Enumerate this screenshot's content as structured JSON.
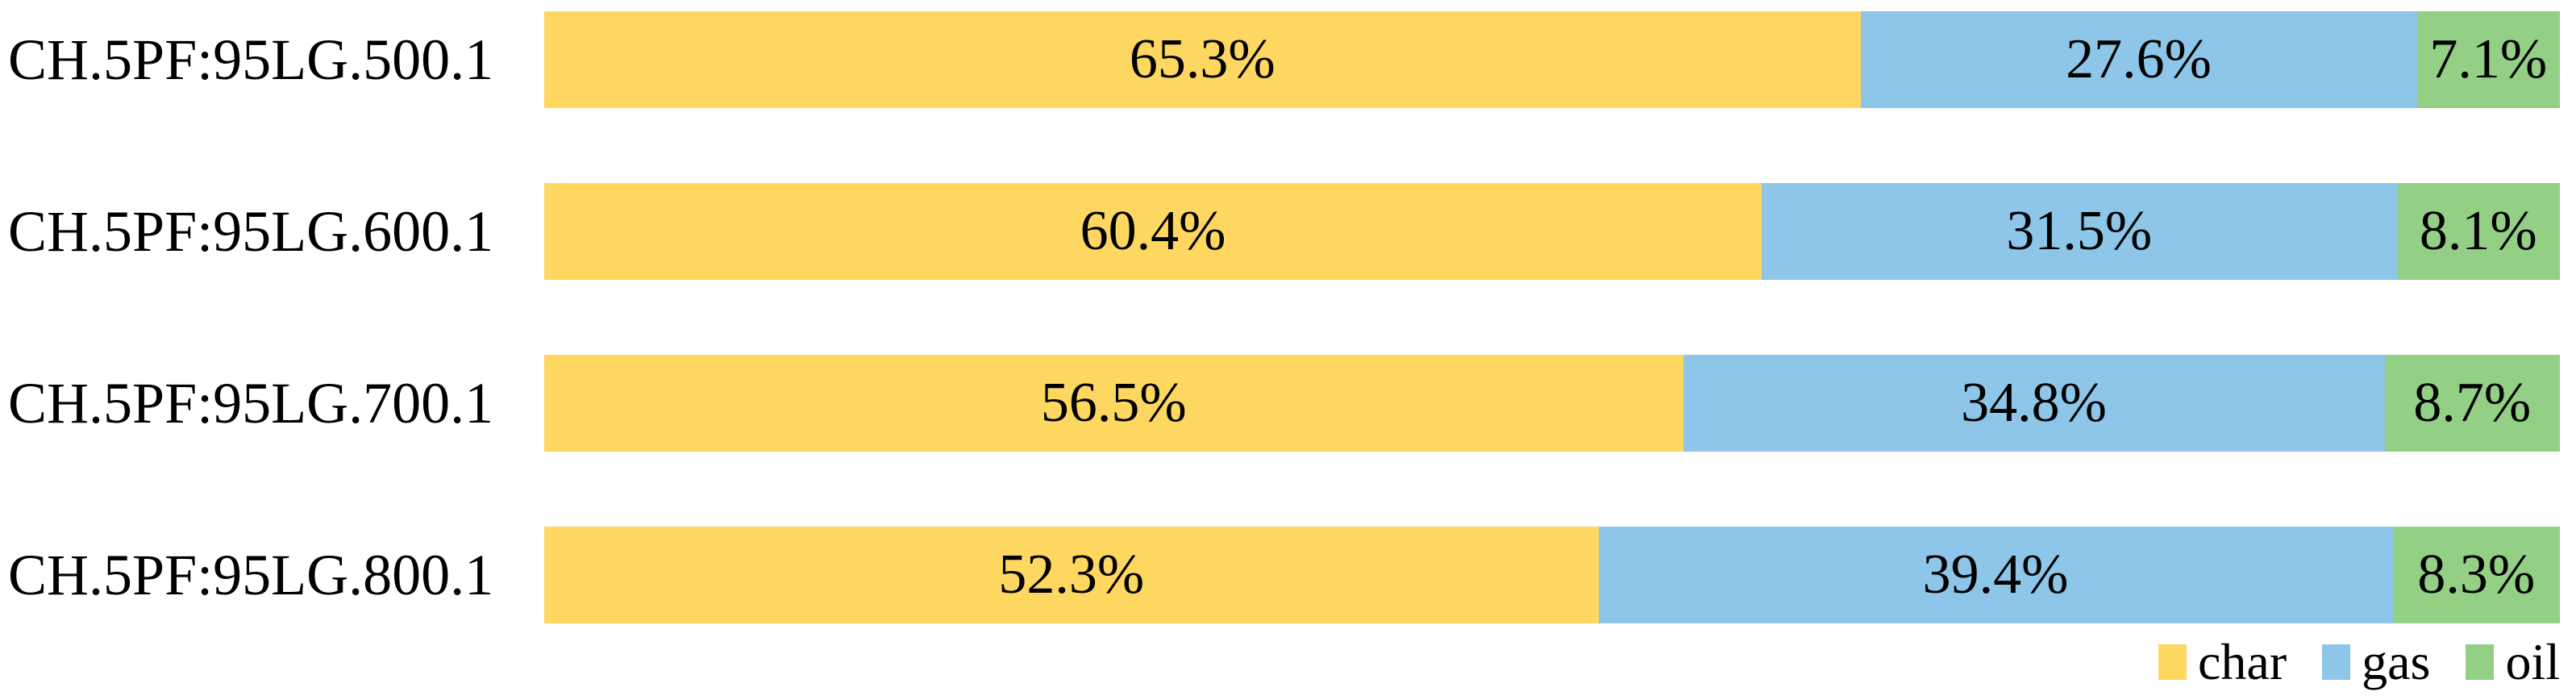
{
  "chart_data": {
    "type": "bar",
    "orientation": "horizontal",
    "stacked": true,
    "unit": "%",
    "title": "",
    "xlabel": "",
    "ylabel": "",
    "xlim": [
      0,
      100
    ],
    "grid": false,
    "background_color": "#FFFFFF",
    "text_color": "#000000",
    "categories": [
      "CH.5PF:95LG.500.1",
      "CH.5PF:95LG.600.1",
      "CH.5PF:95LG.700.1",
      "CH.5PF:95LG.800.1"
    ],
    "series": [
      {
        "name": "char",
        "color": "#FDD75F",
        "values": [
          65.3,
          60.4,
          56.5,
          52.3
        ],
        "labels": [
          "65.3%",
          "60.4%",
          "56.5%",
          "52.3%"
        ]
      },
      {
        "name": "gas",
        "color": "#8DC6E9",
        "values": [
          27.6,
          31.5,
          34.8,
          39.4
        ],
        "labels": [
          "27.6%",
          "31.5%",
          "34.8%",
          "39.4%"
        ]
      },
      {
        "name": "oil",
        "color": "#93CF85",
        "values": [
          7.1,
          8.1,
          8.7,
          8.3
        ],
        "labels": [
          "7.1%",
          "8.1%",
          "8.7%",
          "8.3%"
        ]
      }
    ],
    "legend": {
      "position": "bottom-right",
      "entries": [
        {
          "label": "char",
          "color": "#FDD75F"
        },
        {
          "label": "gas",
          "color": "#8DC6E9"
        },
        {
          "label": "oil",
          "color": "#93CF85"
        }
      ]
    }
  }
}
